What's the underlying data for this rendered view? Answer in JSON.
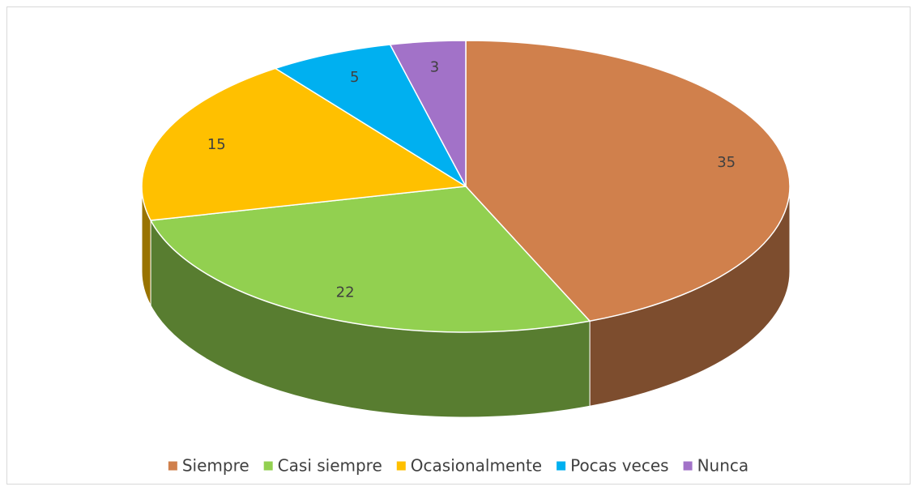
{
  "chart_data": {
    "type": "pie",
    "three_d": true,
    "legend": "bottom",
    "categories": [
      "Siempre",
      "Casi siempre",
      "Ocasionalmente",
      "Pocas veces",
      "Nunca"
    ],
    "values": [
      35,
      22,
      15,
      5,
      3
    ],
    "colors": [
      "#d0804c",
      "#92d050",
      "#ffc000",
      "#00b0f0",
      "#a272c8"
    ]
  }
}
